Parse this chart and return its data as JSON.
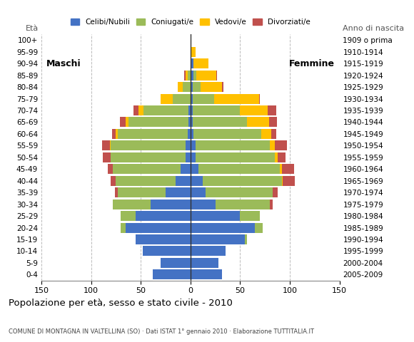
{
  "age_groups": [
    "0-4",
    "5-9",
    "10-14",
    "15-19",
    "20-24",
    "25-29",
    "30-34",
    "35-39",
    "40-44",
    "45-49",
    "50-54",
    "55-59",
    "60-64",
    "65-69",
    "70-74",
    "75-79",
    "80-84",
    "85-89",
    "90-94",
    "95-99",
    "100+"
  ],
  "birth_years": [
    "2005-2009",
    "2000-2004",
    "1995-1999",
    "1990-1994",
    "1985-1989",
    "1980-1984",
    "1975-1979",
    "1970-1974",
    "1965-1969",
    "1960-1964",
    "1955-1959",
    "1950-1954",
    "1945-1949",
    "1940-1944",
    "1935-1939",
    "1930-1934",
    "1925-1929",
    "1920-1924",
    "1915-1919",
    "1910-1914",
    "1909 o prima"
  ],
  "male": {
    "celibe": [
      38,
      30,
      48,
      55,
      65,
      55,
      40,
      25,
      15,
      10,
      5,
      5,
      3,
      2,
      2,
      0,
      0,
      0,
      0,
      0,
      0
    ],
    "coniugato": [
      0,
      0,
      0,
      0,
      5,
      15,
      38,
      48,
      60,
      68,
      75,
      75,
      70,
      60,
      45,
      18,
      8,
      3,
      0,
      0,
      0
    ],
    "vedovo": [
      0,
      0,
      0,
      0,
      0,
      0,
      0,
      0,
      0,
      0,
      0,
      1,
      2,
      3,
      5,
      12,
      5,
      2,
      0,
      0,
      0
    ],
    "divorziato": [
      0,
      0,
      0,
      0,
      0,
      0,
      0,
      3,
      5,
      5,
      8,
      8,
      4,
      6,
      5,
      0,
      0,
      1,
      0,
      0,
      0
    ]
  },
  "female": {
    "nubile": [
      32,
      28,
      35,
      55,
      65,
      50,
      25,
      15,
      12,
      8,
      5,
      5,
      3,
      2,
      2,
      2,
      2,
      3,
      3,
      0,
      0
    ],
    "coniugata": [
      0,
      0,
      0,
      2,
      8,
      20,
      55,
      68,
      80,
      82,
      80,
      75,
      68,
      55,
      48,
      22,
      8,
      3,
      0,
      0,
      0
    ],
    "vedova": [
      0,
      0,
      0,
      0,
      0,
      0,
      0,
      0,
      1,
      2,
      3,
      5,
      10,
      22,
      28,
      45,
      22,
      20,
      15,
      5,
      0
    ],
    "divorziata": [
      0,
      0,
      0,
      0,
      0,
      0,
      3,
      5,
      12,
      12,
      8,
      12,
      5,
      8,
      8,
      1,
      1,
      1,
      0,
      0,
      0
    ]
  },
  "colors": {
    "celibe_nubile": "#4472C4",
    "coniugato_coniugata": "#9BBB59",
    "vedovo_vedova": "#FFC000",
    "divorziato_divorziata": "#C0504D"
  },
  "xlim": [
    -150,
    150
  ],
  "xticks": [
    -150,
    -100,
    -50,
    0,
    50,
    100,
    150
  ],
  "xticklabels": [
    "150",
    "100",
    "50",
    "0",
    "50",
    "100",
    "150"
  ],
  "title": "Popolazione per età, sesso e stato civile - 2010",
  "subtitle": "COMUNE DI MONTAGNA IN VALTELLINA (SO) · Dati ISTAT 1° gennaio 2010 · Elaborazione TUTTITALIA.IT",
  "eta_label": "Età",
  "anno_label": "Anno di nascita",
  "label_maschi": "Maschi",
  "label_femmine": "Femmine",
  "legend_labels": [
    "Celibi/Nubili",
    "Coniugati/e",
    "Vedovi/e",
    "Divorziati/e"
  ],
  "background_color": "#ffffff",
  "grid_color": "#bbbbbb"
}
